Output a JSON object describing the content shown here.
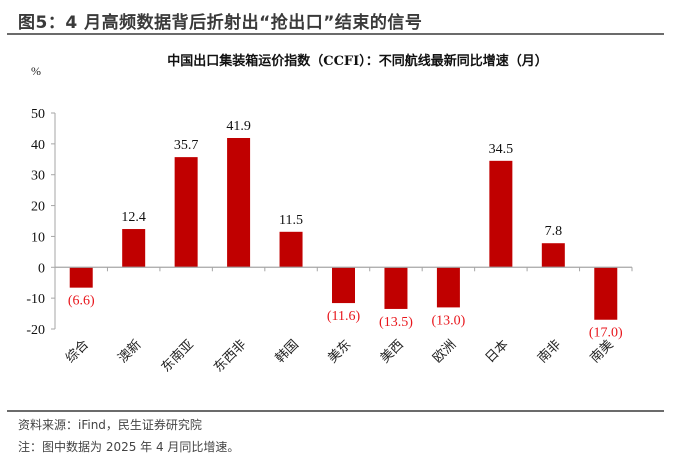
{
  "figure": {
    "title": "图5：4 月高频数据背后折射出“抢出口”结束的信号",
    "source": "资料来源：iFind，民生证券研究院",
    "note": "注：图中数据为 2025 年 4 月同比增速。"
  },
  "colors": {
    "bar": "#C00000",
    "negative_label": "#E8161C",
    "positive_label": "#111111",
    "axis": "#A6A6A6",
    "rule": "#6B6B6B"
  },
  "chart_data": {
    "type": "bar",
    "title": "中国出口集装箱运价指数（CCFI）：不同航线最新同比增速（月）",
    "xlabel": "",
    "ylabel": "%",
    "ylim": [
      -20,
      50
    ],
    "yticks": [
      -20,
      -10,
      0,
      10,
      20,
      30,
      40,
      50
    ],
    "grid": false,
    "legend": null,
    "categories": [
      "综合",
      "澳新",
      "东南亚",
      "东西非",
      "韩国",
      "美东",
      "美西",
      "欧洲",
      "日本",
      "南非",
      "南美"
    ],
    "values": [
      -6.6,
      12.4,
      35.7,
      41.9,
      11.5,
      -11.6,
      -13.5,
      -13.0,
      34.5,
      7.8,
      -17.0
    ],
    "data_labels": [
      "(6.6)",
      "12.4",
      "35.7",
      "41.9",
      "11.5",
      "(11.6)",
      "(13.5)",
      "(13.0)",
      "34.5",
      "7.8",
      "(17.0)"
    ]
  }
}
